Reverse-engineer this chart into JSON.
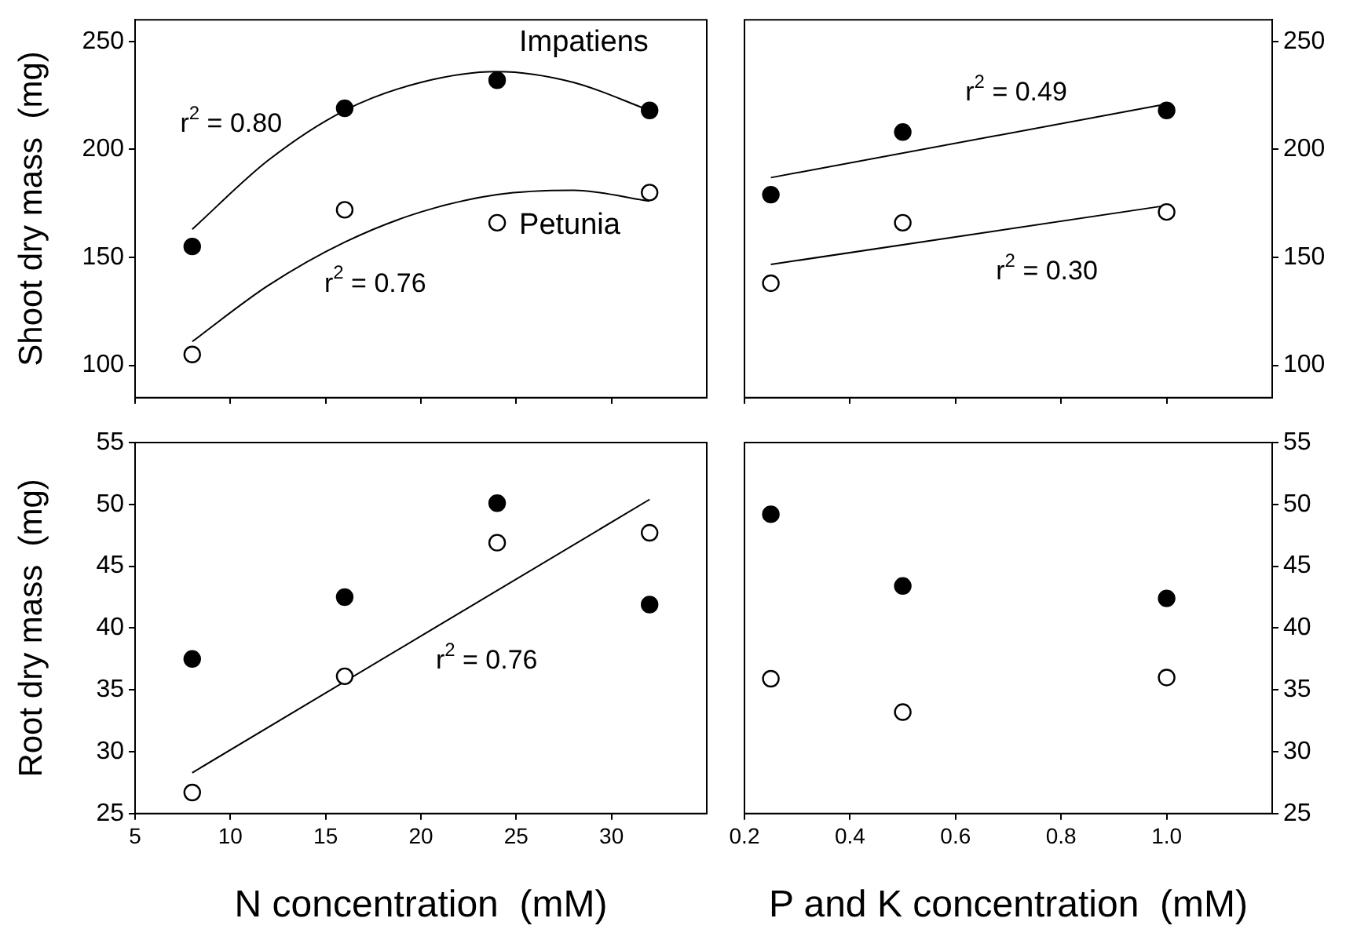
{
  "chart_data": [
    {
      "type": "scatter",
      "ylabel": "Shoot dry mass  (mg)",
      "xlim": [
        5,
        35
      ],
      "xticks": [
        5,
        10,
        15,
        20,
        25,
        30
      ],
      "ylim": [
        85,
        260
      ],
      "yticks": [
        100,
        150,
        200,
        250
      ],
      "tick_labels": "y",
      "marker": "circle",
      "series": [
        {
          "name": "Impatiens",
          "color": "#000000",
          "x": [
            8,
            16,
            24,
            32
          ],
          "values": [
            155,
            219,
            232,
            218
          ]
        },
        {
          "name": "Petunia",
          "color": "#ffffff",
          "x": [
            8,
            16,
            24,
            32
          ],
          "values": [
            105,
            172,
            166,
            180
          ]
        },
        {
          "type": "line",
          "marker": "none",
          "color": "#000000",
          "x": [
            8,
            12,
            16,
            20,
            24,
            28,
            32
          ],
          "values": [
            163,
            195,
            218,
            231,
            236,
            231,
            218
          ]
        },
        {
          "type": "line",
          "marker": "none",
          "color": "#000000",
          "x": [
            8,
            12,
            16,
            20,
            24,
            28,
            32
          ],
          "values": [
            111,
            137,
            157,
            171,
            179,
            181,
            176
          ]
        }
      ],
      "annotations": [
        "r$^{2}$ = 0.80",
        "r$^{2}$ = 0.76"
      ]
    },
    {
      "type": "scatter",
      "xlim": [
        0.2,
        1.2
      ],
      "xticks": [
        0.2,
        0.4,
        0.6,
        0.8,
        1
      ],
      "ylim": [
        85,
        260
      ],
      "yticks": [
        100,
        150,
        200,
        250
      ],
      "tick_labels": "y",
      "marker": "circle",
      "series": [
        {
          "color": "#000000",
          "x": [
            0.25,
            0.5,
            1
          ],
          "values": [
            179,
            208,
            218
          ]
        },
        {
          "color": "#ffffff",
          "x": [
            0.25,
            0.5,
            1
          ],
          "values": [
            138,
            166,
            171
          ]
        },
        {
          "type": "line",
          "marker": "none",
          "color": "#000000",
          "x": [
            0.25,
            1
          ],
          "values": [
            186.9,
            221
          ]
        },
        {
          "type": "line",
          "marker": "none",
          "color": "#000000",
          "x": [
            0.25,
            1
          ],
          "values": [
            146.7,
            174
          ]
        }
      ],
      "annotations": [
        "r$^{2}$ = 0.49",
        "r$^{2}$ = 0.30"
      ]
    },
    {
      "type": "scatter",
      "ylabel": "Root dry mass  (mg)",
      "xlabel": "N concentration  (mM)",
      "xlim": [
        5,
        35
      ],
      "xticks": [
        5,
        10,
        15,
        20,
        25,
        30
      ],
      "ylim": [
        25,
        55
      ],
      "yticks": [
        25,
        30,
        35,
        40,
        45,
        50,
        55
      ],
      "marker": "circle",
      "series": [
        {
          "color": "#000000",
          "x": [
            8,
            16,
            24,
            32
          ],
          "values": [
            37.5,
            42.5,
            50.1,
            41.9
          ]
        },
        {
          "color": "#ffffff",
          "x": [
            8,
            16,
            24,
            32
          ],
          "values": [
            26.7,
            36.1,
            46.9,
            47.7
          ]
        },
        {
          "type": "line",
          "marker": "none",
          "color": "#000000",
          "x": [
            8,
            32
          ],
          "values": [
            28.3,
            50.4
          ]
        }
      ],
      "annotations": [
        "r$^{2}$ = 0.76"
      ]
    },
    {
      "type": "scatter",
      "xlabel": "P and K concentration  (mM)",
      "xlim": [
        0.2,
        1.2
      ],
      "xticks": [
        0.2,
        0.4,
        0.6,
        0.8,
        {
          "value": 1,
          "label": "1.0"
        }
      ],
      "ylim": [
        25,
        55
      ],
      "yticks": [
        25,
        30,
        35,
        40,
        45,
        50,
        55
      ],
      "marker": "circle",
      "series": [
        {
          "color": "#000000",
          "x": [
            0.25,
            0.5,
            1
          ],
          "values": [
            49.2,
            43.4,
            42.4
          ]
        },
        {
          "color": "#ffffff",
          "x": [
            0.25,
            0.5,
            1
          ],
          "values": [
            35.9,
            33.2,
            36
          ]
        }
      ]
    }
  ]
}
